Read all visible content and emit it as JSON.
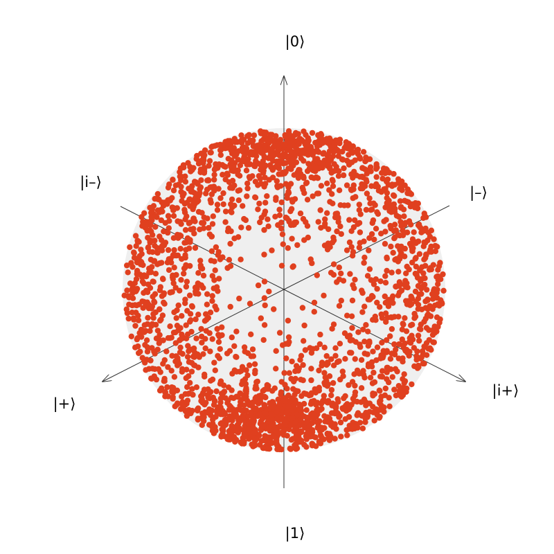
{
  "sphere": {
    "fill_color": "#efefef",
    "point_color": "#e0401f",
    "axis_color": "#333333",
    "sample_count": 2600,
    "distribution": "clustered-near-poles-and-equator-rim"
  },
  "axis_labels": {
    "zero": "|0⟩",
    "one": "|1⟩",
    "minus": "|–⟩",
    "plus": "|+⟩",
    "i_minus": "|i–⟩",
    "i_plus": "|i+⟩"
  }
}
